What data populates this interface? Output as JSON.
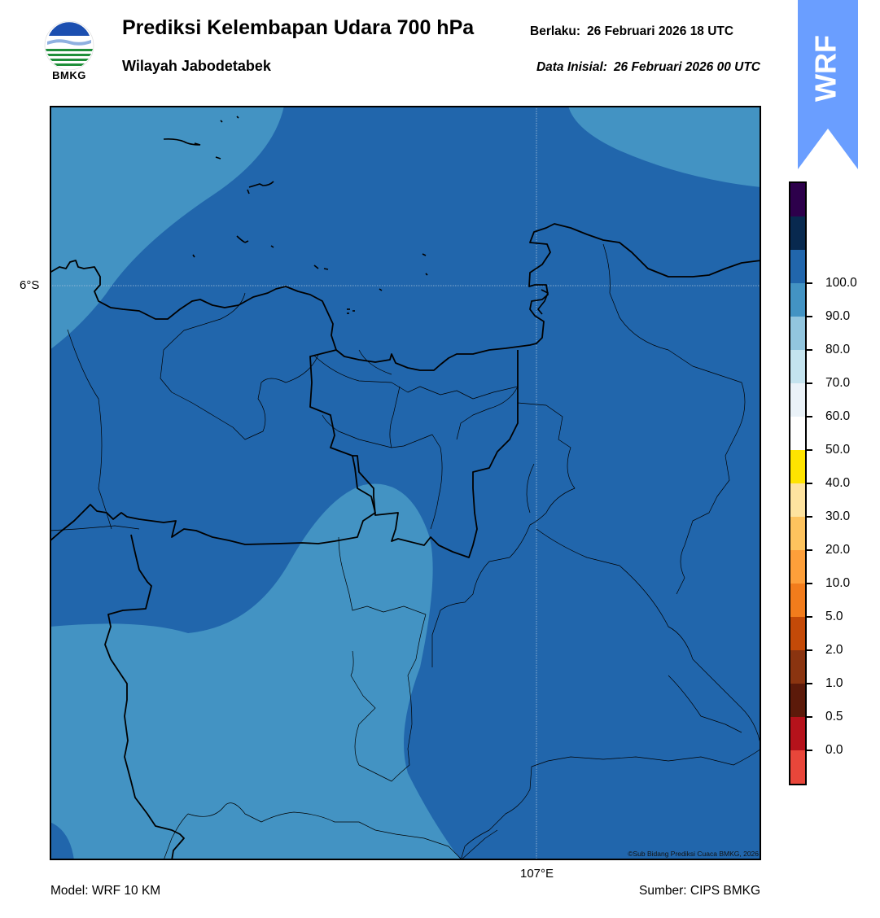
{
  "header": {
    "title": "Prediksi Kelembapan Udara 700 hPa",
    "subtitle": "Wilayah Jabodetabek",
    "valid_label": "Berlaku:",
    "valid_value": "26 Februari 2026 18 UTC",
    "init_label": "Data Inisial:",
    "init_value": "26 Februari 2026 00 UTC"
  },
  "logo": {
    "text": "BMKG",
    "icon": "bmkg-logo-icon"
  },
  "badge": {
    "text": "WRF",
    "color": "#6a9eff",
    "icon": "up-arrow-icon"
  },
  "map": {
    "lat_label": "6°S",
    "lon_label": "107°E",
    "copyright": "©Sub Bidang Prediksi Cuaca BMKG, 2026",
    "field_colors": {
      "80-90": "#2166ac",
      "70-80": "#4393c3"
    }
  },
  "footer": {
    "model": "Model: WRF 10 KM",
    "source": "Sumber: CIPS BMKG"
  },
  "colorbar": {
    "colors": [
      "#e8463a",
      "#b5121b",
      "#5c1a0a",
      "#8a3410",
      "#c44a08",
      "#f27c1c",
      "#fd9f3a",
      "#fdc35e",
      "#fee39f",
      "#ffe300",
      "#ffffff",
      "#eaf2f8",
      "#c4e3ee",
      "#92c5de",
      "#4393c3",
      "#2166ac",
      "#08294f",
      "#2d004b"
    ],
    "ticks": [
      "0.0",
      "0.5",
      "1.0",
      "2.0",
      "5.0",
      "10.0",
      "20.0",
      "30.0",
      "40.0",
      "50.0",
      "60.0",
      "70.0",
      "80.0",
      "90.0",
      "100.0"
    ]
  }
}
